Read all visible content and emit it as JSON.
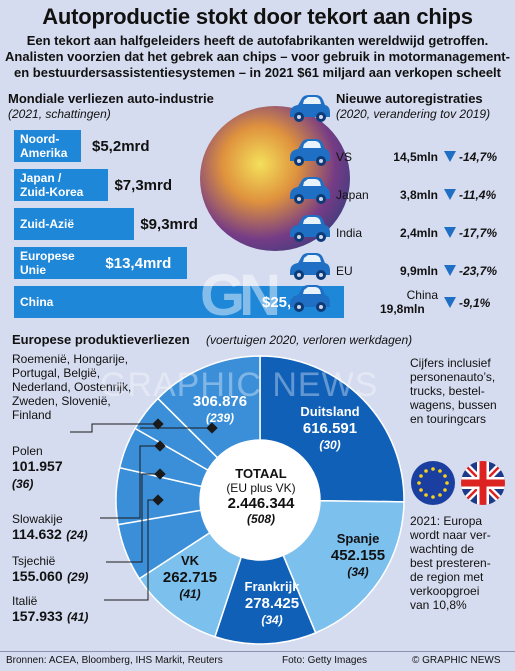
{
  "header": {
    "title": "Autoproductie stokt door tekort aan chips",
    "subtitle_lines": [
      "Een tekort aan halfgeleiders heeft de autofabrikanten wereldwijd getroffen.",
      "Analisten voorzien dat het gebrek aan chips – voor gebruik in motormanagement-",
      "en bestuurdersassistentiesystemen – in 2021 $61 miljard aan verkopen scheelt"
    ]
  },
  "losses": {
    "title": "Mondiale verliezen auto-industrie",
    "subtitle": "(2021, schattingen)"
  },
  "registrations": {
    "title": "Nieuwe autoregistraties",
    "subtitle": "(2020, verandering tov 2019)"
  },
  "europe": {
    "title": "Europese produktieverliezen",
    "subtitle": "(voertuigen 2020, verloren werkdagen)",
    "total_label": "TOTAAL",
    "total_sub": "(EU plus VK)",
    "total_value": "2.446.344",
    "total_days": "(508)",
    "other_label_lines": [
      "Roemenië, Hongarije,",
      "Portugal, België,",
      "Nederland, Oostenrijk,",
      "Zweden, Slovenië,",
      "Finland"
    ]
  },
  "notes": {
    "vehicles": [
      "Cijfers inclusief",
      "personenauto’s,",
      "trucks, bestel-",
      "wagens, bussen",
      "en touringcars"
    ],
    "outlook": [
      "2021: Europa",
      "wordt naar ver-",
      "wachting de",
      "best presteren-",
      "de region met",
      "verkoopgroei",
      "van 10,8%"
    ]
  },
  "footer": {
    "sources": "Bronnen: ACEA, Bloomberg, IHS Markit, Reuters",
    "photo": "Foto: Getty Images",
    "copyright": "© GRAPHIC NEWS"
  },
  "watermark": {
    "logo": "GN",
    "text": "GRAPHIC NEWS"
  },
  "colors": {
    "background": "#d6dcef",
    "bar": "#1f87d8",
    "pie_dark": "#1060b8",
    "pie_mid": "#3b8fd8",
    "pie_light": "#7cc0ee",
    "arrow": "#1f6fc4"
  },
  "chart_data": [
    {
      "type": "bar",
      "title": "Mondiale verliezen auto-industrie",
      "subtitle": "(2021, schattingen)",
      "categories": [
        "Noord-Amerika",
        "Japan / Zuid-Korea",
        "Zuid-Azië",
        "Europese Unie",
        "China"
      ],
      "category_lines": [
        [
          "Noord-",
          "Amerika"
        ],
        [
          "Japan /",
          "Zuid-Korea"
        ],
        [
          "Zuid-Azië"
        ],
        [
          "Europese",
          "Unie"
        ],
        [
          "China"
        ]
      ],
      "values": [
        5.2,
        7.3,
        9.3,
        13.4,
        25.5
      ],
      "value_labels": [
        "$5,2mrd",
        "$7,3mrd",
        "$9,3mrd",
        "$13,4mrd",
        "$25,5mrd"
      ],
      "unit": "mrd dollar"
    },
    {
      "type": "table",
      "title": "Nieuwe autoregistraties",
      "subtitle": "(2020, verandering tov 2019)",
      "rows": [
        {
          "country": "VS",
          "value": "14,5mln",
          "change": -14.7,
          "change_label": "-14,7%"
        },
        {
          "country": "Japan",
          "value": "3,8mln",
          "change": -11.4,
          "change_label": "-11,4%"
        },
        {
          "country": "India",
          "value": "2,4mln",
          "change": -17.7,
          "change_label": "-17,7%"
        },
        {
          "country": "EU",
          "value": "9,9mln",
          "change": -23.7,
          "change_label": "-23,7%"
        },
        {
          "country": "China",
          "value": "19,8mln",
          "change": -9.1,
          "change_label": "-9,1%"
        }
      ]
    },
    {
      "type": "pie",
      "title": "Europese produktieverliezen",
      "subtitle": "(voertuigen 2020, verloren werkdagen)",
      "slices": [
        {
          "label": "Duitsland",
          "value": 616591,
          "value_label": "616.591",
          "days": "(30)"
        },
        {
          "label": "Spanje",
          "value": 452155,
          "value_label": "452.155",
          "days": "(34)"
        },
        {
          "label": "Frankrijk",
          "value": 278425,
          "value_label": "278.425",
          "days": "(34)"
        },
        {
          "label": "VK",
          "value": 262715,
          "value_label": "262.715",
          "days": "(41)"
        },
        {
          "label": "Italië",
          "value": 157933,
          "value_label": "157.933",
          "days": "(41)"
        },
        {
          "label": "Tsjechië",
          "value": 155060,
          "value_label": "155.060",
          "days": "(29)"
        },
        {
          "label": "Slowakije",
          "value": 114632,
          "value_label": "114.632",
          "days": "(24)"
        },
        {
          "label": "Polen",
          "value": 101957,
          "value_label": "101.957",
          "days": "(36)"
        },
        {
          "label": "Roemenië, Hongarije, Portugal, België, Nederland, Oostenrijk, Zweden, Slovenië, Finland",
          "value": 306876,
          "value_label": "306.876",
          "days": "(239)"
        }
      ]
    }
  ]
}
